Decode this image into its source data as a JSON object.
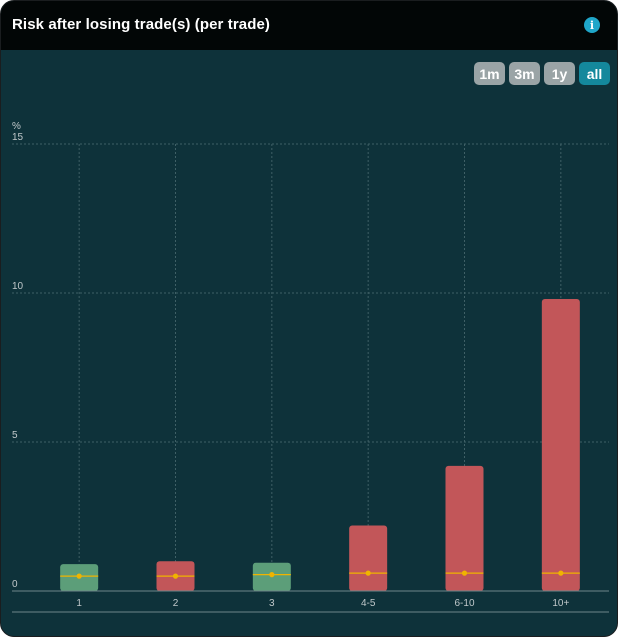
{
  "header": {
    "title": "Risk after losing trade(s) (per trade)",
    "info_icon": "info-icon"
  },
  "range_buttons": [
    {
      "label": "1m",
      "active": false
    },
    {
      "label": "3m",
      "active": false
    },
    {
      "label": "1y",
      "active": false
    },
    {
      "label": "all",
      "active": true
    }
  ],
  "colors": {
    "win": "#5c9e79",
    "loss": "#c25659",
    "marker": "#f0b400",
    "background": "#0e323a",
    "header": "#020606",
    "active_button": "#14889c",
    "inactive_button": "#9aa4a6"
  },
  "chart_data": {
    "type": "bar",
    "y_unit": "%",
    "categories": [
      "1",
      "2",
      "3",
      "4-5",
      "6-10",
      "10+"
    ],
    "values": [
      0.9,
      1.0,
      0.95,
      2.2,
      4.2,
      9.8
    ],
    "bar_colors": [
      "win",
      "loss",
      "win",
      "loss",
      "loss",
      "loss"
    ],
    "marker_values": [
      0.5,
      0.5,
      0.55,
      0.6,
      0.6,
      0.6
    ],
    "ylim": [
      0,
      15
    ],
    "yticks": [
      0,
      5,
      10,
      15
    ],
    "grid": true,
    "legend": false
  }
}
